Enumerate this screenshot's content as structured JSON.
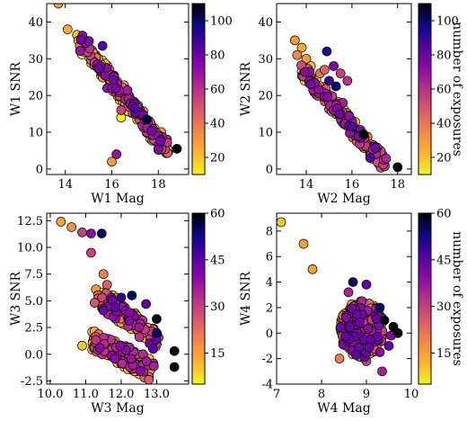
{
  "colormap": {
    "name": "plasma_r",
    "stops": [
      "#f0f921",
      "#fdb42f",
      "#f48849",
      "#db5c68",
      "#b83289",
      "#8b0aa5",
      "#5302a3",
      "#0d0887",
      "#000004"
    ]
  },
  "chart_data": [
    {
      "type": "scatter",
      "id": "W1",
      "xlabel": "W1 Mag",
      "ylabel": "W1 SNR",
      "xlim": [
        13.2,
        19.3
      ],
      "ylim": [
        -1.5,
        45
      ],
      "xticks": [
        14,
        16,
        18
      ],
      "yticks": [
        0,
        10,
        20,
        30,
        40
      ],
      "colorbar": {
        "ticks": [
          20,
          40,
          60,
          80,
          100
        ],
        "range": [
          10,
          110
        ],
        "label": ""
      },
      "band": {
        "x_start": 14.6,
        "x_end": 18.4,
        "y_start": 35.0,
        "y_end": 5.0,
        "spread": 2.0,
        "count": 260,
        "seed": 11,
        "xjitter": 0.3,
        "cmin": 10,
        "cmax": 80
      },
      "points": [
        [
          13.7,
          45.0,
          30
        ],
        [
          14.1,
          38.0,
          25
        ],
        [
          14.5,
          36.5,
          20
        ],
        [
          14.9,
          33.0,
          35
        ],
        [
          15.6,
          33.5,
          85
        ],
        [
          15.3,
          31.0,
          20
        ],
        [
          15.5,
          28.0,
          50
        ],
        [
          15.9,
          27.0,
          45
        ],
        [
          16.1,
          25.0,
          55
        ],
        [
          16.7,
          17.0,
          50
        ],
        [
          17.0,
          16.5,
          85
        ],
        [
          17.5,
          13.5,
          105
        ],
        [
          17.5,
          10.0,
          60
        ],
        [
          17.8,
          8.0,
          50
        ],
        [
          16.4,
          14.0,
          10
        ],
        [
          16.4,
          16.0,
          55
        ],
        [
          16.0,
          2.0,
          30
        ],
        [
          16.2,
          4.0,
          70
        ],
        [
          18.0,
          5.5,
          75
        ],
        [
          18.8,
          5.5,
          110
        ],
        [
          15.8,
          22.0,
          70
        ]
      ]
    },
    {
      "type": "scatter",
      "id": "W2",
      "xlabel": "W2 Mag",
      "ylabel": "W2 SNR",
      "xlim": [
        12.7,
        18.6
      ],
      "ylim": [
        -1.5,
        45
      ],
      "xticks": [
        14,
        16,
        18
      ],
      "yticks": [
        0,
        10,
        20,
        30,
        40
      ],
      "colorbar": {
        "ticks": [
          20,
          40,
          60,
          80,
          100
        ],
        "range": [
          10,
          110
        ],
        "label": "number of exposures"
      },
      "band": {
        "x_start": 13.8,
        "x_end": 17.4,
        "y_start": 27.0,
        "y_end": 1.5,
        "spread": 1.8,
        "count": 240,
        "seed": 23,
        "xjitter": 0.3,
        "cmin": 10,
        "cmax": 80
      },
      "points": [
        [
          13.5,
          35.0,
          30
        ],
        [
          13.8,
          33.0,
          25
        ],
        [
          13.6,
          31.0,
          35
        ],
        [
          14.0,
          30.0,
          30
        ],
        [
          14.6,
          26.0,
          40
        ],
        [
          14.2,
          28.0,
          20
        ],
        [
          14.9,
          32.0,
          95
        ],
        [
          15.2,
          28.0,
          75
        ],
        [
          14.8,
          27.0,
          45
        ],
        [
          15.5,
          26.0,
          55
        ],
        [
          15.8,
          24.0,
          60
        ],
        [
          15.3,
          22.5,
          100
        ],
        [
          15.0,
          24.0,
          90
        ],
        [
          16.0,
          11.5,
          85
        ],
        [
          16.3,
          9.0,
          60
        ],
        [
          16.5,
          9.5,
          110
        ],
        [
          16.8,
          3.0,
          85
        ],
        [
          17.4,
          2.5,
          60
        ],
        [
          18.0,
          0.5,
          110
        ],
        [
          15.6,
          18.0,
          65
        ]
      ]
    },
    {
      "type": "scatter",
      "id": "W3",
      "xlabel": "W3 Mag",
      "ylabel": "W3 SNR",
      "xlim": [
        9.9,
        13.9
      ],
      "ylim": [
        -2.8,
        13.2
      ],
      "xticks": [
        10,
        11,
        12,
        13
      ],
      "yticks": [
        -2.5,
        0.0,
        2.5,
        5.0,
        7.5,
        10.0,
        12.5
      ],
      "tick_decimals": 1,
      "colorbar": {
        "ticks": [
          15,
          30,
          45,
          60
        ],
        "range": [
          5,
          60
        ],
        "label": ""
      },
      "bands": [
        {
          "x_start": 11.3,
          "x_end": 13.0,
          "y_start": 5.6,
          "y_end": 1.3,
          "spread": 0.9,
          "count": 170,
          "seed": 31,
          "xjitter": 0.18,
          "cmin": 5,
          "cmax": 45
        },
        {
          "x_start": 11.2,
          "x_end": 12.9,
          "y_start": 1.3,
          "y_end": -1.6,
          "spread": 1.0,
          "count": 170,
          "seed": 37,
          "xjitter": 0.18,
          "cmin": 5,
          "cmax": 40
        }
      ],
      "points": [
        [
          10.3,
          12.4,
          15
        ],
        [
          10.6,
          11.9,
          18
        ],
        [
          10.9,
          11.4,
          30
        ],
        [
          11.15,
          11.3,
          40
        ],
        [
          11.45,
          11.3,
          55
        ],
        [
          11.15,
          9.5,
          30
        ],
        [
          11.5,
          7.5,
          20
        ],
        [
          11.6,
          6.5,
          25
        ],
        [
          12.0,
          5.3,
          50
        ],
        [
          12.3,
          5.5,
          55
        ],
        [
          12.7,
          4.7,
          45
        ],
        [
          13.0,
          3.3,
          60
        ],
        [
          13.0,
          2.0,
          55
        ],
        [
          12.9,
          0.5,
          45
        ],
        [
          13.5,
          0.3,
          60
        ],
        [
          13.5,
          -1.2,
          60
        ],
        [
          10.9,
          0.8,
          10
        ]
      ]
    },
    {
      "type": "scatter",
      "id": "W4",
      "xlabel": "W4 Mag",
      "ylabel": "W4 SNR",
      "xlim": [
        7.0,
        10.0
      ],
      "ylim": [
        -4.0,
        9.4
      ],
      "xticks": [
        7,
        8,
        9,
        10
      ],
      "yticks": [
        -4,
        -2,
        0,
        2,
        4,
        6,
        8
      ],
      "colorbar": {
        "ticks": [
          15,
          30,
          45,
          60
        ],
        "range": [
          5,
          60
        ],
        "label": "number of exposures"
      },
      "blob": {
        "x_center": 8.9,
        "x_half": 0.5,
        "y_center": 0.3,
        "y_half": 2.2,
        "count": 330,
        "seed": 47,
        "cmin": 5,
        "cmax": 45
      },
      "points": [
        [
          7.1,
          8.7,
          10
        ],
        [
          7.6,
          7.0,
          15
        ],
        [
          7.8,
          5.0,
          15
        ],
        [
          8.7,
          4.0,
          55
        ],
        [
          9.0,
          3.8,
          45
        ],
        [
          8.6,
          3.2,
          35
        ],
        [
          9.3,
          2.0,
          55
        ],
        [
          9.4,
          1.0,
          60
        ],
        [
          9.6,
          0.5,
          60
        ],
        [
          9.55,
          -0.2,
          40
        ],
        [
          9.5,
          -1.0,
          45
        ],
        [
          9.3,
          -1.5,
          40
        ],
        [
          9.35,
          -3.0,
          35
        ],
        [
          9.7,
          0.0,
          60
        ],
        [
          9.0,
          -2.2,
          30
        ],
        [
          8.4,
          -2.0,
          20
        ],
        [
          8.9,
          2.5,
          35
        ]
      ]
    }
  ]
}
